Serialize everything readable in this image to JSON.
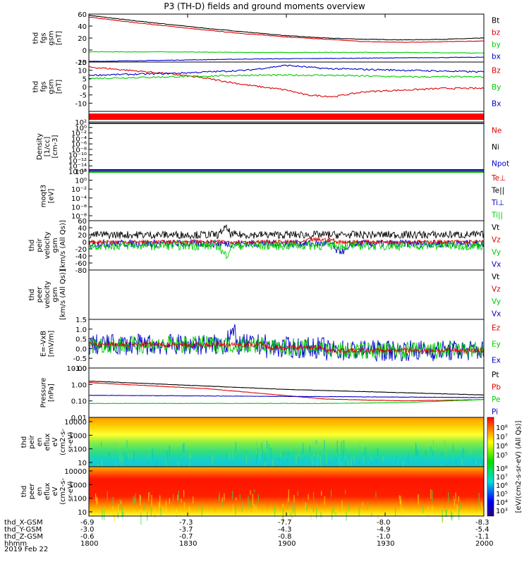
{
  "title": "P3 (TH-D) fields and ground moments overview",
  "chart_data": [
    {
      "id": "fgs_gsm",
      "type": "line",
      "ylabel": [
        "thd",
        "fgs",
        "gsm",
        "[nT]"
      ],
      "ylim": [
        -20,
        60
      ],
      "yticks": [
        -20,
        0,
        20,
        40,
        60
      ],
      "series": [
        {
          "name": "Bt",
          "color": "#000000",
          "x": [
            0,
            0.1,
            0.2,
            0.3,
            0.4,
            0.5,
            0.6,
            0.7,
            0.8,
            0.9,
            1
          ],
          "y": [
            58,
            50,
            43,
            36,
            30,
            24,
            20,
            18,
            17,
            18,
            20
          ]
        },
        {
          "name": "bz",
          "color": "#dd0000",
          "x": [
            0,
            0.1,
            0.2,
            0.3,
            0.4,
            0.5,
            0.6,
            0.7,
            0.8,
            0.9,
            1
          ],
          "y": [
            55,
            47,
            40,
            33,
            27,
            22,
            18,
            14,
            13,
            14,
            15
          ]
        },
        {
          "name": "by",
          "color": "#00cc00",
          "x": [
            0,
            0.2,
            0.4,
            0.6,
            0.8,
            1
          ],
          "y": [
            -3,
            -3,
            -4,
            -4,
            -4,
            -5
          ]
        },
        {
          "name": "bx",
          "color": "#0000cc",
          "x": [
            0,
            0.2,
            0.4,
            0.6,
            0.8,
            1
          ],
          "y": [
            -19,
            -17,
            -15,
            -14,
            -13,
            -12
          ]
        }
      ]
    },
    {
      "id": "fgs_gsm_zoom",
      "type": "line",
      "ylabel": [
        "thd",
        "fgs",
        "gsm",
        "[nT]"
      ],
      "ylim": [
        -15,
        15
      ],
      "yticks": [
        -10,
        -5,
        0,
        5,
        10,
        15
      ],
      "series": [
        {
          "name": "Bz",
          "color": "#dd0000",
          "x": [
            0,
            0.1,
            0.2,
            0.3,
            0.4,
            0.5,
            0.55,
            0.62,
            0.7,
            0.8,
            0.9,
            1
          ],
          "y": [
            12,
            10,
            8,
            5,
            1,
            -2,
            -5,
            -6,
            -3,
            -2,
            -1,
            -1
          ]
        },
        {
          "name": "By",
          "color": "#00cc00",
          "x": [
            0,
            0.2,
            0.4,
            0.6,
            0.8,
            1
          ],
          "y": [
            5,
            6,
            7,
            7,
            6,
            6
          ]
        },
        {
          "name": "Bx",
          "color": "#0000cc",
          "x": [
            0,
            0.2,
            0.4,
            0.5,
            0.6,
            0.8,
            1
          ],
          "y": [
            7,
            8,
            10,
            13,
            11,
            10,
            9
          ]
        }
      ]
    },
    {
      "id": "density",
      "type": "line",
      "ylabel": [
        "Density",
        "[1/cc]",
        "[cm-3]"
      ],
      "ylim_log": [
        -16,
        2
      ],
      "ytick_labels": [
        "10²",
        "10⁰",
        "10⁻²",
        "10⁻⁴",
        "10⁻⁶",
        "10⁻⁸",
        "10⁻¹⁰",
        "10⁻¹²",
        "10⁻¹⁴",
        "10⁻¹⁶"
      ],
      "series": [
        {
          "name": "Ne",
          "color": "#dd0000"
        },
        {
          "name": "Ni",
          "color": "#000000"
        },
        {
          "name": "Npot",
          "color": "#0000cc"
        }
      ]
    },
    {
      "id": "temperature",
      "type": "line",
      "ylabel": [
        "moqt3",
        "[eV]"
      ],
      "ytick_labels": [
        "10²",
        "10⁰",
        "10⁻²",
        "10⁻⁴",
        "10⁻⁶",
        "10⁻⁸"
      ],
      "series": [
        {
          "name": "Te⊥",
          "color": "#dd0000"
        },
        {
          "name": "Te||",
          "color": "#000000"
        },
        {
          "name": "Ti⊥",
          "color": "#0000cc"
        },
        {
          "name": "Ti||",
          "color": "#00cc00"
        }
      ]
    },
    {
      "id": "peir_velocity",
      "type": "line",
      "ylabel": [
        "thd",
        "peir",
        "velocity",
        "gsm",
        "[km/s (All Qs)]"
      ],
      "ylim": [
        -80,
        60
      ],
      "yticks": [
        -80,
        -60,
        -40,
        -20,
        0,
        20,
        40,
        60
      ],
      "series": [
        {
          "name": "Vt",
          "color": "#000000",
          "level": 20
        },
        {
          "name": "Vz",
          "color": "#dd0000",
          "level": 0
        },
        {
          "name": "Vy",
          "color": "#00cc00",
          "level": -10
        },
        {
          "name": "Vx",
          "color": "#0000cc",
          "level": -5
        }
      ]
    },
    {
      "id": "peer_velocity",
      "type": "line",
      "ylabel": [
        "thd",
        "peer",
        "velocity",
        "gsm",
        "[km/s (All Qs)]"
      ],
      "series": [
        {
          "name": "Vt",
          "color": "#000000"
        },
        {
          "name": "Vz",
          "color": "#dd0000"
        },
        {
          "name": "Vy",
          "color": "#00cc00"
        },
        {
          "name": "Vx",
          "color": "#0000cc"
        }
      ]
    },
    {
      "id": "efield",
      "type": "line",
      "ylabel": [
        "E=-VxB",
        "[mV/m]"
      ],
      "ylim": [
        -1.0,
        1.5
      ],
      "yticks": [
        -1.0,
        -0.5,
        0.0,
        0.5,
        1.0,
        1.5
      ],
      "ytick_labels": [
        "-1.0",
        "-0.5",
        "0.0",
        "0.5",
        "1.0",
        "1.5"
      ],
      "series": [
        {
          "name": "Ez",
          "color": "#dd0000"
        },
        {
          "name": "Ey",
          "color": "#00cc00"
        },
        {
          "name": "Ex",
          "color": "#0000cc"
        }
      ]
    },
    {
      "id": "pressure",
      "type": "line",
      "ylabel": [
        "Pressure",
        "[nPa]"
      ],
      "ytick_labels": [
        "10.00",
        "1.00",
        "0.10",
        "0.01"
      ],
      "series": [
        {
          "name": "Pt",
          "color": "#000000",
          "x": [
            0,
            0.5,
            1
          ],
          "y": [
            1.6,
            0.5,
            0.23
          ]
        },
        {
          "name": "Pb",
          "color": "#dd0000",
          "x": [
            0,
            0.3,
            0.6,
            0.8,
            1
          ],
          "y": [
            1.3,
            0.55,
            0.13,
            0.1,
            0.12
          ]
        },
        {
          "name": "Pe",
          "color": "#00cc00",
          "x": [
            0,
            0.6,
            0.8,
            1
          ],
          "y": [
            0.07,
            0.07,
            0.08,
            0.12
          ]
        },
        {
          "name": "Pi",
          "color": "#0000cc",
          "x": [
            0,
            1
          ],
          "y": [
            0.22,
            0.16
          ]
        }
      ]
    },
    {
      "id": "peir_spec",
      "type": "heatmap",
      "ylabel": [
        "thd",
        "peir",
        "en",
        "eflux",
        "eV",
        "(cm2-s-",
        "sr-eV)"
      ],
      "ytick_labels": [
        "10000",
        "1000",
        "100",
        "10"
      ]
    },
    {
      "id": "peer_spec",
      "type": "heatmap",
      "ylabel": [
        "thd",
        "peer",
        "en",
        "eflux",
        "eV",
        "(cm2-s-",
        "sr-eV)"
      ],
      "ytick_labels": [
        "10000",
        "1000",
        "100",
        "10"
      ]
    }
  ],
  "colorbar": {
    "label": "[eV/(cm2-s-sr-eV) (All Qs)]",
    "label_lower": "[eV/(cm2-s-sr-eV)]",
    "upper_ticks": [
      "10⁸",
      "10⁷",
      "10⁶",
      "10⁵"
    ],
    "lower_ticks": [
      "10⁸",
      "10⁷",
      "10⁶",
      "10⁵",
      "10⁴",
      "10³"
    ]
  },
  "footer": {
    "rows": [
      {
        "label": "thd_X-GSM",
        "values": [
          "-6.9",
          "-7.3",
          "-7.7",
          "-8.0",
          "-8.3"
        ]
      },
      {
        "label": "thd_Y-GSM",
        "values": [
          "-3.0",
          "-3.7",
          "-4.3",
          "-4.9",
          "-5.4"
        ]
      },
      {
        "label": "thd_Z-GSM",
        "values": [
          "-0.6",
          "-0.7",
          "-0.8",
          "-1.0",
          "-1.1"
        ]
      },
      {
        "label": "hhmm",
        "values": [
          "1800",
          "1830",
          "1900",
          "1930",
          "2000"
        ]
      }
    ],
    "date": "2019 Feb 22"
  }
}
